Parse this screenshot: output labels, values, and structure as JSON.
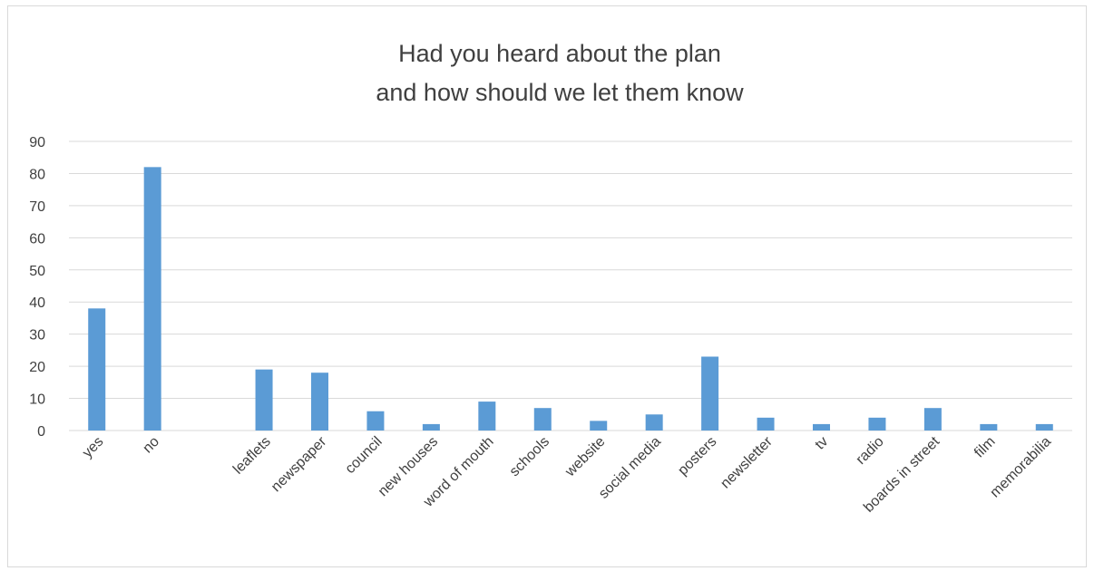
{
  "chart_data": {
    "type": "bar",
    "title_lines": [
      "Had you heard about the plan",
      "and how should we let them know"
    ],
    "categories": [
      "yes",
      "no",
      "",
      "leaflets",
      "newspaper",
      "council",
      "new houses",
      "word of mouth",
      "schools",
      "website",
      "social media",
      "posters",
      "newsletter",
      "tv",
      "radio",
      "boards in street",
      "film",
      "memorabilia"
    ],
    "values": [
      38,
      82,
      null,
      19,
      18,
      6,
      2,
      9,
      7,
      3,
      5,
      23,
      4,
      2,
      4,
      7,
      2,
      2
    ],
    "ylim": [
      0,
      90
    ],
    "yticks": [
      0,
      10,
      20,
      30,
      40,
      50,
      60,
      70,
      80,
      90
    ],
    "grid": true,
    "legend": "none",
    "colors": {
      "bar": "#5b9bd5",
      "grid": "#d9d9d9",
      "text": "#404040"
    }
  }
}
